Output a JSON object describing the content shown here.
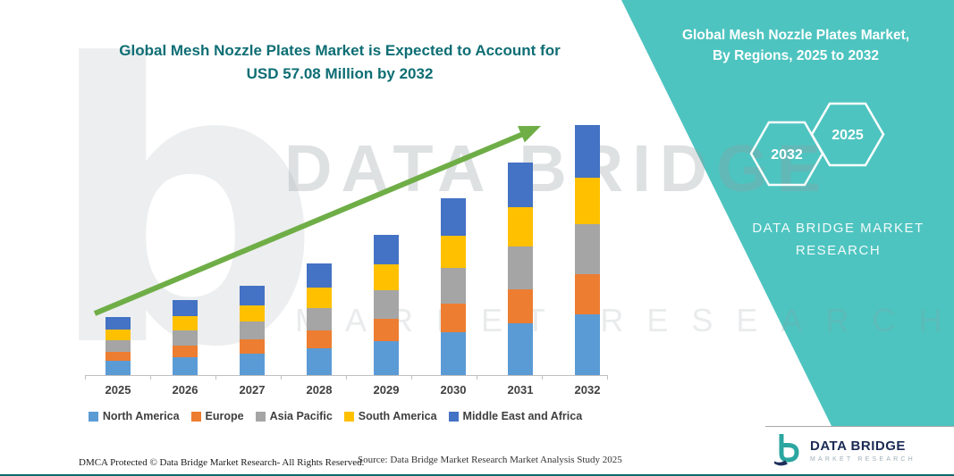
{
  "title": {
    "line1": "Global Mesh Nozzle Plates Market is Expected to Account for",
    "line2": "USD 57.08 Million by 2032"
  },
  "side_panel": {
    "heading_line1": "Global Mesh Nozzle Plates Market,",
    "heading_line2": "By Regions, 2025 to 2032",
    "hexagon_back_label": "2032",
    "hexagon_front_label": "2025",
    "brand_line1": "DATA BRIDGE MARKET",
    "brand_line2": "RESEARCH",
    "background_color": "#4EC4C0"
  },
  "watermark": {
    "letter": "b",
    "line1": "DATA BRIDGE",
    "line2": "MARKET RESEARCH"
  },
  "chart_data": {
    "type": "bar",
    "stacked": true,
    "title": "Global Mesh Nozzle Plates Market is Expected to Account for USD 57.08 Million by 2032",
    "unit": "USD Million",
    "categories": [
      "2025",
      "2026",
      "2027",
      "2028",
      "2029",
      "2030",
      "2031",
      "2032"
    ],
    "series": [
      {
        "name": "North America",
        "color": "#5B9BD5",
        "values": [
          3.3,
          4.1,
          4.9,
          6.1,
          7.8,
          9.8,
          11.8,
          13.9
        ]
      },
      {
        "name": "Europe",
        "color": "#ED7D31",
        "values": [
          2.0,
          2.7,
          3.3,
          4.1,
          5.1,
          6.5,
          7.8,
          9.2
        ]
      },
      {
        "name": "Asia Pacific",
        "color": "#A5A5A5",
        "values": [
          2.7,
          3.5,
          4.1,
          5.1,
          6.5,
          8.2,
          9.8,
          11.4
        ]
      },
      {
        "name": "South America",
        "color": "#FFC000",
        "values": [
          2.4,
          3.1,
          3.7,
          4.7,
          5.9,
          7.3,
          9.0,
          10.6
        ]
      },
      {
        "name": "Middle East and Africa",
        "color": "#4472C4",
        "values": [
          2.9,
          3.7,
          4.5,
          5.5,
          6.7,
          8.6,
          10.2,
          11.98
        ]
      }
    ],
    "totals_estimated": [
      13.3,
      17.1,
      20.5,
      25.5,
      32.0,
      40.4,
      48.6,
      57.08
    ],
    "ylim": [
      0,
      57.08
    ],
    "gridlines": false,
    "legend_position": "bottom",
    "trend_arrow_color": "#6FAE47"
  },
  "footer": {
    "dmca": "DMCA Protected © Data Bridge Market Research-  All Rights Reserved.",
    "source": "Source: Data Bridge Market Research  Market Analysis Study 2025"
  },
  "logo": {
    "title": "DATA BRIDGE",
    "subtitle": "MARKET RESEARCH"
  }
}
